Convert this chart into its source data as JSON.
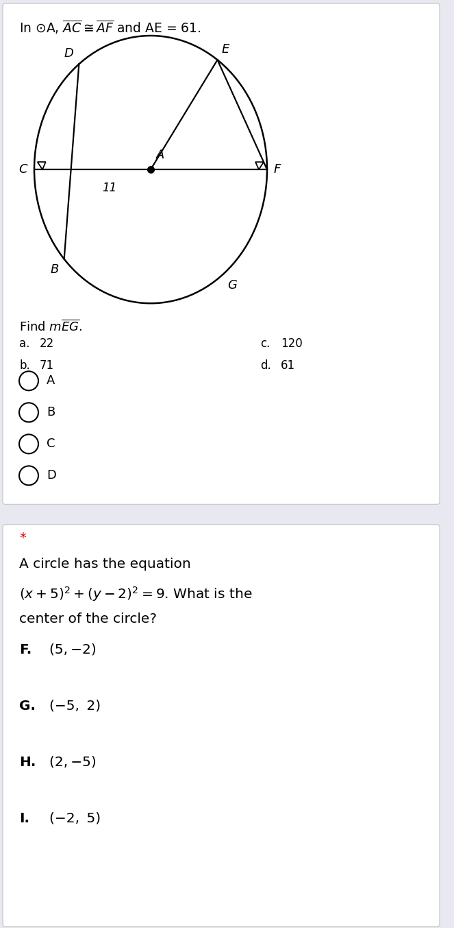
{
  "title_text": "In ⊙A, $\\overline{AC} \\cong \\overline{AF}$ and AE = 61.",
  "find_text": "Find $m\\overline{EG}$.",
  "answers_left": [
    [
      "a.",
      "22"
    ],
    [
      "b.",
      "71"
    ]
  ],
  "answers_right": [
    [
      "c.",
      "120"
    ],
    [
      "d.",
      "61"
    ]
  ],
  "radio_labels": [
    "A",
    "B",
    "C",
    "D"
  ],
  "question2_star": "*",
  "question2_text_line1": "A circle has the equation",
  "question2_text_line2": "$(x + 5)^2 + (y - 2)^2 = 9$. What is the",
  "question2_text_line3": "center of the circle?",
  "question2_answers": [
    [
      "F.",
      "(5, −2)"
    ],
    [
      "G.",
      "(−5,  2)"
    ],
    [
      "H.",
      "(2, −5)"
    ],
    [
      "I.",
      "(−2,  5)"
    ]
  ],
  "bg_color": "#e8e8f0",
  "card_bg": "#ffffff",
  "separator_color": "#cccccc",
  "text_color": "#000000",
  "label_11": "11",
  "circle_r": 1.15
}
